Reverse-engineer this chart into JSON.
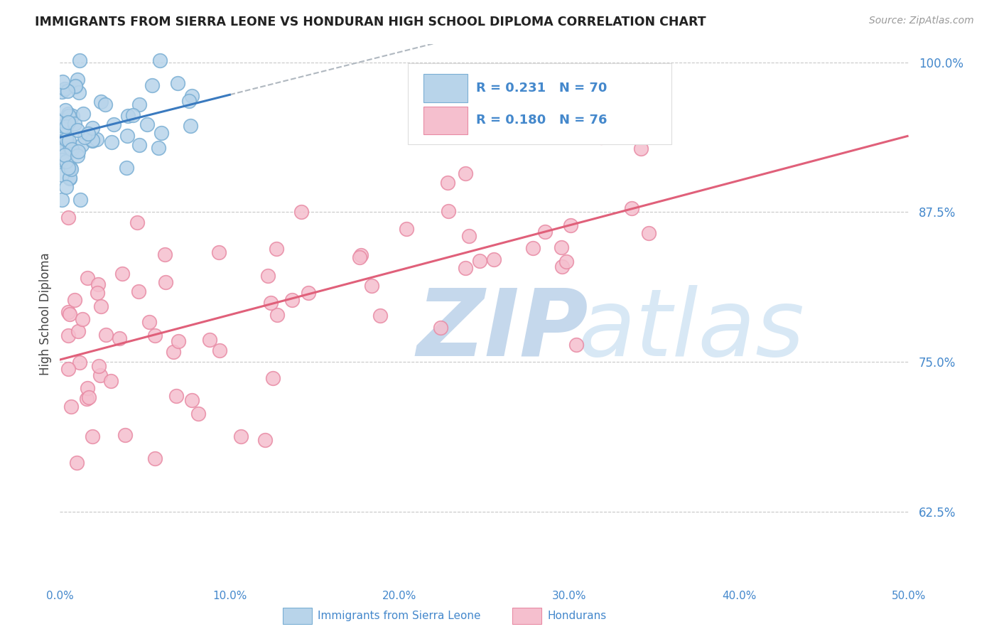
{
  "title": "IMMIGRANTS FROM SIERRA LEONE VS HONDURAN HIGH SCHOOL DIPLOMA CORRELATION CHART",
  "source": "Source: ZipAtlas.com",
  "xlabel_blue": "Immigrants from Sierra Leone",
  "xlabel_pink": "Hondurans",
  "ylabel": "High School Diploma",
  "xlim": [
    0.0,
    0.5
  ],
  "ylim": [
    0.565,
    1.015
  ],
  "yticks": [
    0.625,
    0.75,
    0.875,
    1.0
  ],
  "ytick_labels": [
    "62.5%",
    "75.0%",
    "87.5%",
    "100.0%"
  ],
  "xticks": [
    0.0,
    0.1,
    0.2,
    0.3,
    0.4,
    0.5
  ],
  "xtick_labels": [
    "0.0%",
    "10.0%",
    "20.0%",
    "30.0%",
    "40.0%",
    "50.0%"
  ],
  "blue_R": 0.231,
  "blue_N": 70,
  "pink_R": 0.18,
  "pink_N": 76,
  "blue_color": "#b8d4ea",
  "blue_edge": "#7aafd4",
  "pink_color": "#f5bfce",
  "pink_edge": "#e88aa4",
  "blue_line_color": "#3a7abf",
  "pink_line_color": "#e0607a",
  "trend_line_color": "#b0b8c0",
  "grid_color": "#c8c8c8",
  "title_color": "#222222",
  "axis_label_color": "#444444",
  "tick_label_color": "#4488cc",
  "source_color": "#999999",
  "watermark_zip_color": "#c8dff0",
  "watermark_atlas_color": "#d8e8f4"
}
